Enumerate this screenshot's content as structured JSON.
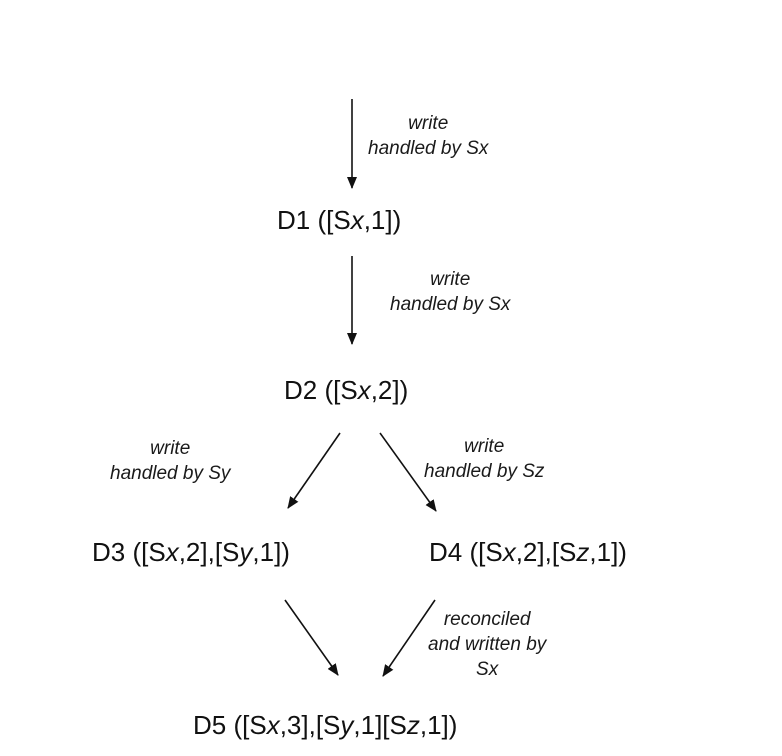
{
  "nodes": {
    "d1": {
      "parts": [
        "D1 ([S",
        "x",
        ",1])"
      ]
    },
    "d2": {
      "parts": [
        "D2 ([S",
        "x",
        ",2])"
      ]
    },
    "d3": {
      "parts": [
        "D3 ([S",
        "x",
        ",2],[S",
        "y",
        ",1])"
      ]
    },
    "d4": {
      "parts": [
        "D4 ([S",
        "x",
        ",2],[S",
        "z",
        ",1])"
      ]
    },
    "d5": {
      "parts": [
        "D5 ([S",
        "x",
        ",3],[S",
        "y",
        ",1][S",
        "z",
        ",1])"
      ]
    }
  },
  "edges": {
    "start_d1": {
      "lines": [
        "write",
        "handled by Sx"
      ]
    },
    "d1_d2": {
      "lines": [
        "write",
        "handled by Sx"
      ]
    },
    "d2_d3": {
      "lines": [
        "write",
        "handled by Sy"
      ]
    },
    "d2_d4": {
      "lines": [
        "write",
        "handled by Sz"
      ]
    },
    "d4_d5": {
      "lines": [
        "reconciled",
        "and written by",
        "Sx"
      ]
    }
  },
  "colors": {
    "ink": "#111111",
    "background": "#ffffff"
  }
}
